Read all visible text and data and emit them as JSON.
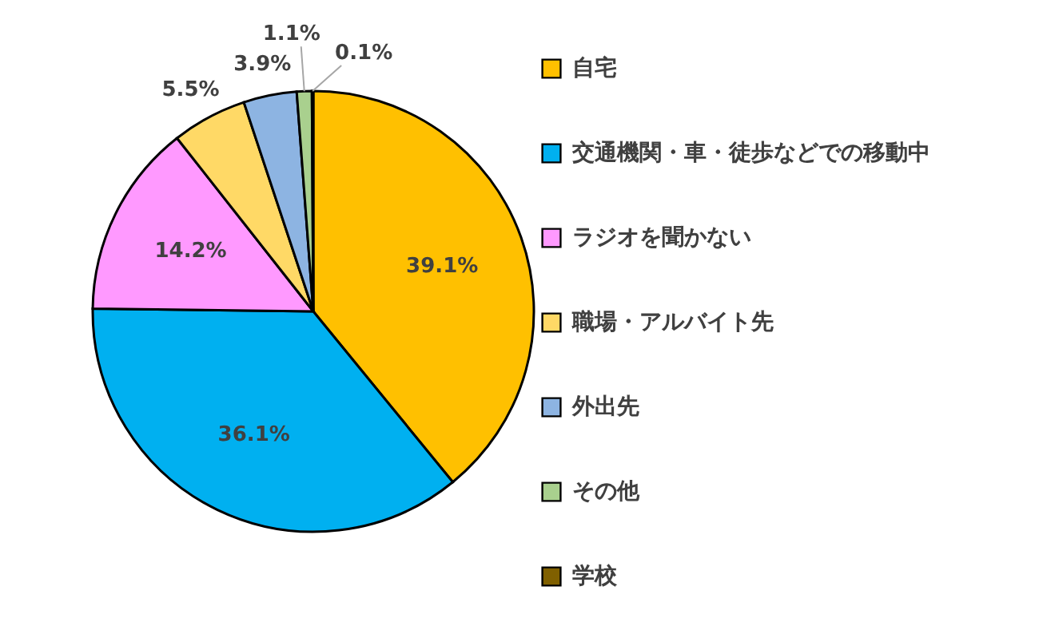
{
  "chart_data": {
    "type": "pie",
    "categories": [
      "自宅",
      "交通機関・車・徒歩などでの移動中",
      "ラジオを聞かない",
      "職場・アルバイト先",
      "外出先",
      "その他",
      "学校"
    ],
    "values": [
      39.1,
      36.1,
      14.2,
      5.5,
      3.9,
      1.1,
      0.1
    ],
    "colors": [
      "#ffc000",
      "#00b0f0",
      "#ff99ff",
      "#ffd966",
      "#8db4e2",
      "#a9d08e",
      "#806000"
    ],
    "value_labels": [
      "39.1%",
      "36.1%",
      "14.2%",
      "5.5%",
      "3.9%",
      "1.1%",
      "0.1%"
    ],
    "legend": "right"
  }
}
